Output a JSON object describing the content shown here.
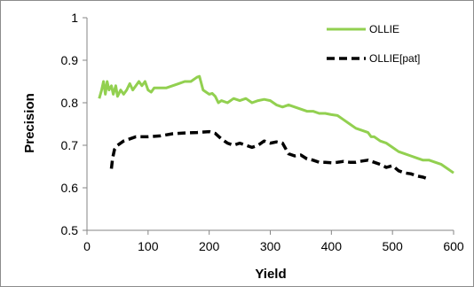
{
  "chart_data": {
    "type": "line",
    "xlabel": "Yield",
    "ylabel": "Precision",
    "xlim": [
      0,
      600
    ],
    "ylim": [
      0.5,
      1
    ],
    "x_ticks": [
      0,
      100,
      200,
      300,
      400,
      500,
      600
    ],
    "y_ticks": [
      0.5,
      0.6,
      0.7,
      0.8,
      0.9,
      1
    ],
    "y_tick_labels": [
      "0.5",
      "0.6",
      "0.7",
      "0.8",
      "0.9",
      "1"
    ],
    "grid": false,
    "legend_position": "top-right",
    "series": [
      {
        "name": "OLLIE",
        "color": "#92d050",
        "style": "solid",
        "points": [
          [
            20,
            0.81
          ],
          [
            24,
            0.83
          ],
          [
            27,
            0.85
          ],
          [
            30,
            0.82
          ],
          [
            33,
            0.85
          ],
          [
            36,
            0.83
          ],
          [
            40,
            0.84
          ],
          [
            43,
            0.82
          ],
          [
            47,
            0.84
          ],
          [
            50,
            0.815
          ],
          [
            55,
            0.83
          ],
          [
            60,
            0.82
          ],
          [
            65,
            0.83
          ],
          [
            70,
            0.845
          ],
          [
            75,
            0.83
          ],
          [
            80,
            0.84
          ],
          [
            85,
            0.85
          ],
          [
            90,
            0.84
          ],
          [
            95,
            0.85
          ],
          [
            100,
            0.83
          ],
          [
            105,
            0.825
          ],
          [
            110,
            0.835
          ],
          [
            120,
            0.835
          ],
          [
            130,
            0.835
          ],
          [
            140,
            0.84
          ],
          [
            150,
            0.845
          ],
          [
            160,
            0.85
          ],
          [
            170,
            0.85
          ],
          [
            180,
            0.86
          ],
          [
            184,
            0.862
          ],
          [
            190,
            0.83
          ],
          [
            195,
            0.825
          ],
          [
            200,
            0.82
          ],
          [
            205,
            0.822
          ],
          [
            210,
            0.815
          ],
          [
            215,
            0.8
          ],
          [
            220,
            0.805
          ],
          [
            230,
            0.8
          ],
          [
            240,
            0.81
          ],
          [
            250,
            0.805
          ],
          [
            260,
            0.81
          ],
          [
            270,
            0.8
          ],
          [
            280,
            0.805
          ],
          [
            290,
            0.808
          ],
          [
            300,
            0.805
          ],
          [
            310,
            0.795
          ],
          [
            320,
            0.79
          ],
          [
            330,
            0.795
          ],
          [
            340,
            0.79
          ],
          [
            350,
            0.785
          ],
          [
            360,
            0.78
          ],
          [
            370,
            0.78
          ],
          [
            380,
            0.775
          ],
          [
            390,
            0.775
          ],
          [
            400,
            0.772
          ],
          [
            410,
            0.77
          ],
          [
            420,
            0.76
          ],
          [
            430,
            0.75
          ],
          [
            440,
            0.74
          ],
          [
            450,
            0.735
          ],
          [
            460,
            0.73
          ],
          [
            465,
            0.72
          ],
          [
            470,
            0.72
          ],
          [
            480,
            0.71
          ],
          [
            490,
            0.705
          ],
          [
            500,
            0.695
          ],
          [
            510,
            0.685
          ],
          [
            520,
            0.68
          ],
          [
            530,
            0.675
          ],
          [
            540,
            0.67
          ],
          [
            550,
            0.665
          ],
          [
            560,
            0.665
          ],
          [
            570,
            0.66
          ],
          [
            580,
            0.655
          ],
          [
            590,
            0.645
          ],
          [
            595,
            0.64
          ],
          [
            600,
            0.635
          ]
        ]
      },
      {
        "name": "OLLIE[pat]",
        "color": "#000000",
        "style": "dashed",
        "points": [
          [
            40,
            0.645
          ],
          [
            42,
            0.67
          ],
          [
            45,
            0.69
          ],
          [
            50,
            0.7
          ],
          [
            60,
            0.71
          ],
          [
            70,
            0.715
          ],
          [
            80,
            0.72
          ],
          [
            90,
            0.72
          ],
          [
            100,
            0.72
          ],
          [
            120,
            0.722
          ],
          [
            140,
            0.727
          ],
          [
            160,
            0.729
          ],
          [
            180,
            0.73
          ],
          [
            200,
            0.732
          ],
          [
            210,
            0.728
          ],
          [
            220,
            0.715
          ],
          [
            230,
            0.705
          ],
          [
            240,
            0.7
          ],
          [
            250,
            0.705
          ],
          [
            260,
            0.7
          ],
          [
            270,
            0.695
          ],
          [
            280,
            0.7
          ],
          [
            290,
            0.71
          ],
          [
            300,
            0.705
          ],
          [
            310,
            0.708
          ],
          [
            320,
            0.705
          ],
          [
            330,
            0.68
          ],
          [
            340,
            0.675
          ],
          [
            350,
            0.677
          ],
          [
            360,
            0.668
          ],
          [
            370,
            0.665
          ],
          [
            380,
            0.66
          ],
          [
            390,
            0.66
          ],
          [
            400,
            0.659
          ],
          [
            410,
            0.66
          ],
          [
            420,
            0.662
          ],
          [
            430,
            0.66
          ],
          [
            440,
            0.66
          ],
          [
            450,
            0.663
          ],
          [
            460,
            0.665
          ],
          [
            470,
            0.66
          ],
          [
            480,
            0.655
          ],
          [
            490,
            0.648
          ],
          [
            500,
            0.652
          ],
          [
            510,
            0.64
          ],
          [
            520,
            0.635
          ],
          [
            530,
            0.633
          ],
          [
            540,
            0.628
          ],
          [
            550,
            0.625
          ],
          [
            560,
            0.62
          ]
        ]
      }
    ]
  }
}
